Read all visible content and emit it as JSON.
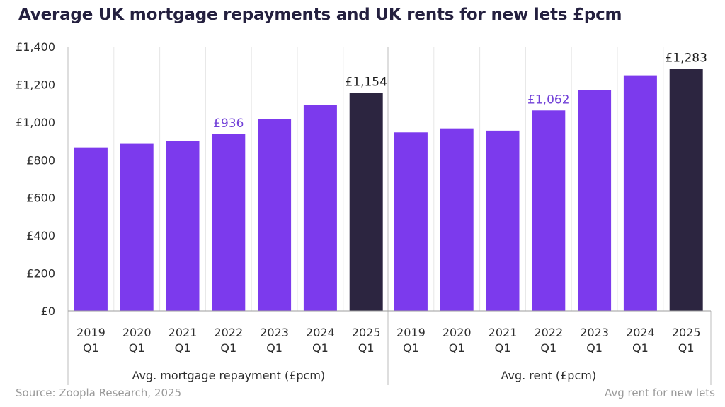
{
  "title": "Average UK mortgage repayments and UK rents for new lets £pcm",
  "source": "Source: Zoopla Research, 2025",
  "note": "Avg rent for new lets",
  "colors": {
    "bar": "#7c3aed",
    "highlight": "#2c2540",
    "label_accent": "#7140d8",
    "label_dark": "#1c1c1c",
    "grid": "#e6e6e6",
    "axis": "#bdbdbd"
  },
  "chart_data": {
    "type": "bar",
    "title": "Average UK mortgage repayments and UK rents for new lets £pcm",
    "ylim": [
      0,
      1400
    ],
    "yticks": [
      0,
      200,
      400,
      600,
      800,
      1000,
      1200,
      1400
    ],
    "ytick_labels": [
      "£0",
      "£200",
      "£400",
      "£600",
      "£800",
      "£1,000",
      "£1,200",
      "£1,400"
    ],
    "groups": [
      {
        "name": "Avg. mortgage repayment (£pcm)",
        "categories": [
          [
            "2019",
            "Q1"
          ],
          [
            "2020",
            "Q1"
          ],
          [
            "2021",
            "Q1"
          ],
          [
            "2022",
            "Q1"
          ],
          [
            "2023",
            "Q1"
          ],
          [
            "2024",
            "Q1"
          ],
          [
            "2025",
            "Q1"
          ]
        ],
        "values": [
          866,
          885,
          901,
          936,
          1018,
          1092,
          1154
        ],
        "highlight_index": 6,
        "data_labels": [
          {
            "index": 3,
            "text": "£936",
            "style": "accent"
          },
          {
            "index": 6,
            "text": "£1,154",
            "style": "dark"
          }
        ]
      },
      {
        "name": "Avg. rent (£pcm)",
        "categories": [
          [
            "2019",
            "Q1"
          ],
          [
            "2020",
            "Q1"
          ],
          [
            "2021",
            "Q1"
          ],
          [
            "2022",
            "Q1"
          ],
          [
            "2023",
            "Q1"
          ],
          [
            "2024",
            "Q1"
          ],
          [
            "2025",
            "Q1"
          ]
        ],
        "values": [
          946,
          967,
          955,
          1062,
          1170,
          1248,
          1283
        ],
        "highlight_index": 6,
        "data_labels": [
          {
            "index": 3,
            "text": "£1,062",
            "style": "accent"
          },
          {
            "index": 6,
            "text": "£1,283",
            "style": "dark"
          }
        ]
      }
    ]
  }
}
